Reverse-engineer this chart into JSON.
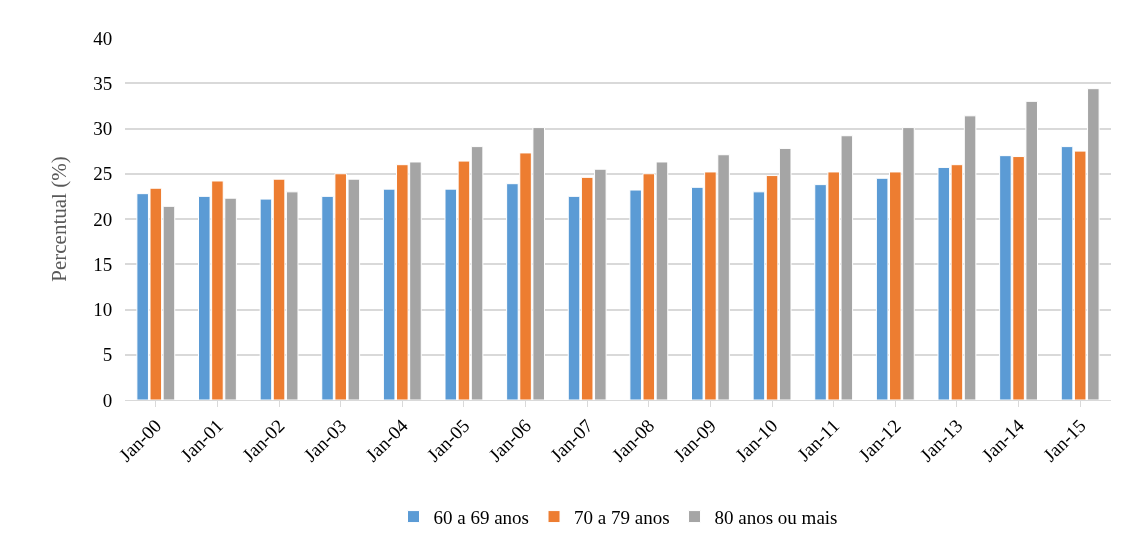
{
  "chart_data": {
    "type": "bar",
    "ylabel": "Percentual (%)",
    "categories": [
      "Jan-00",
      "Jan-01",
      "Jan-02",
      "Jan-03",
      "Jan-04",
      "Jan-05",
      "Jan-06",
      "Jan-07",
      "Jan-08",
      "Jan-09",
      "Jan-10",
      "Jan-11",
      "Jan-12",
      "Jan-13",
      "Jan-14",
      "Jan-15"
    ],
    "series": [
      {
        "name": "60 a 69 anos",
        "color": "#5b9bd5",
        "values": [
          22.8,
          22.5,
          22.2,
          22.5,
          23.3,
          23.3,
          23.9,
          22.5,
          23.2,
          23.5,
          23.0,
          23.8,
          24.5,
          25.7,
          27.0,
          28.0
        ]
      },
      {
        "name": "70 a 79 anos",
        "color": "#ed7d31",
        "values": [
          23.4,
          24.2,
          24.4,
          25.0,
          26.0,
          26.4,
          27.3,
          24.6,
          25.0,
          25.2,
          24.8,
          25.2,
          25.2,
          26.0,
          26.9,
          27.5
        ]
      },
      {
        "name": "80 anos ou mais",
        "color": "#a5a5a5",
        "values": [
          21.4,
          22.3,
          23.0,
          24.4,
          26.3,
          28.0,
          30.1,
          25.5,
          26.3,
          27.1,
          27.8,
          29.2,
          30.1,
          31.4,
          33.0,
          34.4
        ]
      }
    ],
    "ylim": [
      0,
      40
    ],
    "yticks": [
      0,
      5,
      10,
      15,
      20,
      25,
      30,
      35,
      40
    ],
    "grid": "y",
    "legend": "bottom"
  }
}
